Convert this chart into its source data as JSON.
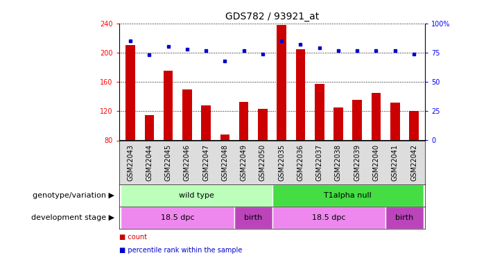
{
  "title": "GDS782 / 93921_at",
  "samples": [
    "GSM22043",
    "GSM22044",
    "GSM22045",
    "GSM22046",
    "GSM22047",
    "GSM22048",
    "GSM22049",
    "GSM22050",
    "GSM22035",
    "GSM22036",
    "GSM22037",
    "GSM22038",
    "GSM22039",
    "GSM22040",
    "GSM22041",
    "GSM22042"
  ],
  "counts": [
    210,
    115,
    175,
    150,
    128,
    88,
    133,
    123,
    238,
    205,
    157,
    125,
    135,
    145,
    132,
    120
  ],
  "percentiles": [
    85,
    73,
    80,
    78,
    77,
    68,
    77,
    74,
    85,
    82,
    79,
    77,
    77,
    77,
    77,
    74
  ],
  "ylim_left": [
    80,
    240
  ],
  "ylim_right": [
    0,
    100
  ],
  "yticks_left": [
    80,
    120,
    160,
    200,
    240
  ],
  "yticks_right": [
    0,
    25,
    50,
    75,
    100
  ],
  "bar_color": "#cc0000",
  "dot_color": "#0000cc",
  "background_color": "#ffffff",
  "genotype_groups": [
    {
      "label": "wild type",
      "start": 0,
      "end": 8,
      "color": "#bbffbb"
    },
    {
      "label": "T1alpha null",
      "start": 8,
      "end": 16,
      "color": "#44dd44"
    }
  ],
  "stage_groups": [
    {
      "label": "18.5 dpc",
      "start": 0,
      "end": 6,
      "color": "#ee88ee"
    },
    {
      "label": "birth",
      "start": 6,
      "end": 8,
      "color": "#bb44bb"
    },
    {
      "label": "18.5 dpc",
      "start": 8,
      "end": 14,
      "color": "#ee88ee"
    },
    {
      "label": "birth",
      "start": 14,
      "end": 16,
      "color": "#bb44bb"
    }
  ],
  "genotype_label": "genotype/variation",
  "stage_label": "development stage",
  "legend_count": "count",
  "legend_percentile": "percentile rank within the sample",
  "title_fontsize": 10,
  "tick_fontsize": 7,
  "annot_fontsize": 8,
  "label_fontsize": 8
}
